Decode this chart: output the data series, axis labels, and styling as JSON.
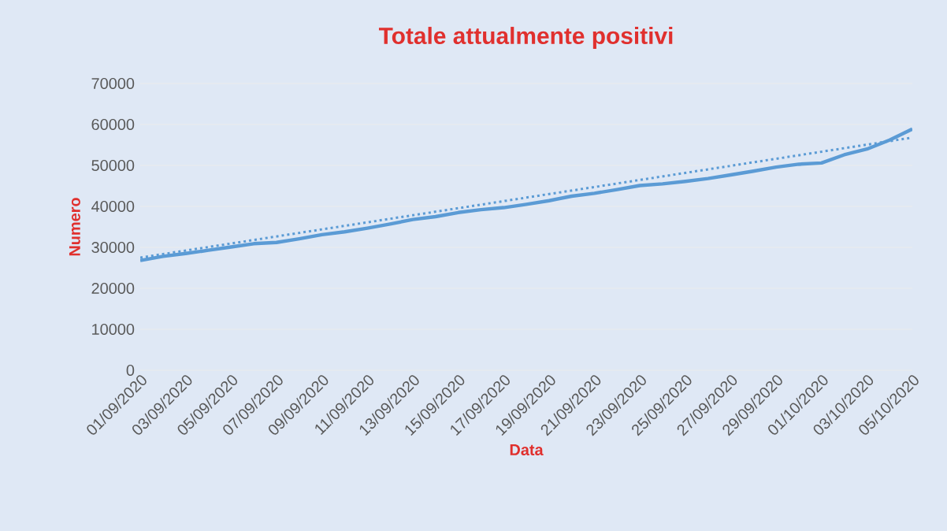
{
  "chart_data": {
    "type": "line",
    "title": "Totale attualmente positivi",
    "xlabel": "Data",
    "ylabel": "Numero",
    "xlim": [
      "2020-09-01",
      "2020-10-05"
    ],
    "ylim": [
      0,
      70000
    ],
    "yticks": [
      0,
      10000,
      20000,
      30000,
      40000,
      50000,
      60000,
      70000
    ],
    "xticks": [
      {
        "value": "2020-09-01",
        "label": "01/09/2020"
      },
      {
        "value": "2020-09-03",
        "label": "03/09/2020"
      },
      {
        "value": "2020-09-05",
        "label": "05/09/2020"
      },
      {
        "value": "2020-09-07",
        "label": "07/09/2020"
      },
      {
        "value": "2020-09-09",
        "label": "09/09/2020"
      },
      {
        "value": "2020-09-11",
        "label": "11/09/2020"
      },
      {
        "value": "2020-09-13",
        "label": "13/09/2020"
      },
      {
        "value": "2020-09-15",
        "label": "15/09/2020"
      },
      {
        "value": "2020-09-17",
        "label": "17/09/2020"
      },
      {
        "value": "2020-09-19",
        "label": "19/09/2020"
      },
      {
        "value": "2020-09-21",
        "label": "21/09/2020"
      },
      {
        "value": "2020-09-23",
        "label": "23/09/2020"
      },
      {
        "value": "2020-09-25",
        "label": "25/09/2020"
      },
      {
        "value": "2020-09-27",
        "label": "27/09/2020"
      },
      {
        "value": "2020-09-29",
        "label": "29/09/2020"
      },
      {
        "value": "2020-10-01",
        "label": "01/10/2020"
      },
      {
        "value": "2020-10-03",
        "label": "03/10/2020"
      },
      {
        "value": "2020-10-05",
        "label": "05/10/2020"
      }
    ],
    "grid": "y",
    "marker": "none",
    "series": [
      {
        "color": "#5b9bd5",
        "line_style": "solid",
        "x": [
          "2020-09-01",
          "2020-09-02",
          "2020-09-03",
          "2020-09-04",
          "2020-09-05",
          "2020-09-06",
          "2020-09-07",
          "2020-09-08",
          "2020-09-09",
          "2020-09-10",
          "2020-09-11",
          "2020-09-12",
          "2020-09-13",
          "2020-09-14",
          "2020-09-15",
          "2020-09-16",
          "2020-09-17",
          "2020-09-18",
          "2020-09-19",
          "2020-09-20",
          "2020-09-21",
          "2020-09-22",
          "2020-09-23",
          "2020-09-24",
          "2020-09-25",
          "2020-09-26",
          "2020-09-27",
          "2020-09-28",
          "2020-09-29",
          "2020-09-30",
          "2020-10-01",
          "2020-10-02",
          "2020-10-03",
          "2020-10-04",
          "2020-10-05"
        ],
        "values": [
          26800,
          27800,
          28500,
          29300,
          30100,
          30900,
          31200,
          32100,
          33100,
          33800,
          34700,
          35700,
          36800,
          37500,
          38500,
          39200,
          39700,
          40500,
          41400,
          42500,
          43200,
          44100,
          45100,
          45500,
          46100,
          46800,
          47700,
          48600,
          49600,
          50300,
          50600,
          52600,
          54000,
          56200,
          58900
        ]
      },
      {
        "type": "line",
        "color": "#5b9bd5",
        "line_style": "dotted",
        "x": [
          "2020-09-01",
          "2020-10-05"
        ],
        "values": [
          27500,
          56800
        ]
      }
    ]
  }
}
